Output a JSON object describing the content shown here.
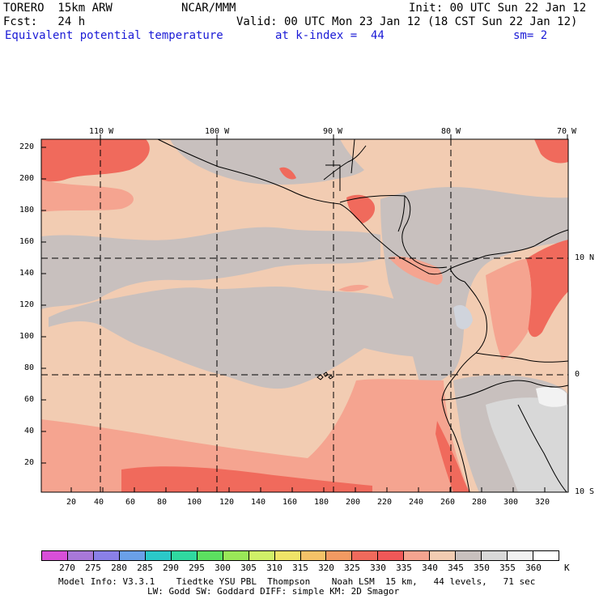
{
  "header": {
    "model": "TORERO  15km ARW",
    "org": "NCAR/MMM",
    "init": "Init: 00 UTC Sun 22 Jan 12",
    "fcst": "Fcst:   24 h",
    "valid": "Valid: 00 UTC Mon 23 Jan 12 (18 CST Sun 22 Jan 12)",
    "field": "Equivalent potential temperature",
    "level": "at k-index =  44",
    "smooth": "sm= 2"
  },
  "map": {
    "top_lon_labels": [
      "110 W",
      "100 W",
      "90 W",
      "80 W",
      "70 W"
    ],
    "right_lat_labels": [
      "10 N",
      "0",
      "10 S"
    ],
    "left_ticks": [
      "220",
      "200",
      "180",
      "160",
      "140",
      "120",
      "100",
      "80",
      "60",
      "40",
      "20"
    ],
    "bottom_ticks": [
      "20",
      "40",
      "60",
      "80",
      "100",
      "120",
      "140",
      "160",
      "180",
      "200",
      "220",
      "240",
      "260",
      "280",
      "300",
      "320"
    ],
    "field_description": "Equivalent potential temperature shaded field over the eastern Pacific, Central America and northwestern South America"
  },
  "colorbar": {
    "unit": "K",
    "labels": [
      "270",
      "275",
      "280",
      "285",
      "290",
      "295",
      "300",
      "305",
      "310",
      "315",
      "320",
      "325",
      "330",
      "335",
      "340",
      "345",
      "350",
      "355",
      "360"
    ],
    "colors": [
      "#d84fd8",
      "#a878d8",
      "#8a80e8",
      "#6aa0e8",
      "#2bc8c8",
      "#30d8a0",
      "#5ce060",
      "#9ae858",
      "#d0f068",
      "#f0e468",
      "#f5c268",
      "#f29a62",
      "#f06a5c",
      "#f05858",
      "#f5a490",
      "#f2ccb2",
      "#c8c0be",
      "#d8d8d8",
      "#f2f2f2",
      "#ffffff"
    ]
  },
  "footer": {
    "line1": "Model Info: V3.3.1    Tiedtke YSU PBL  Thompson    Noah LSM  15 km,   44 levels,   71 sec",
    "line2": "LW: Godd SW: Goddard DIFF: simple KM: 2D Smagor"
  }
}
